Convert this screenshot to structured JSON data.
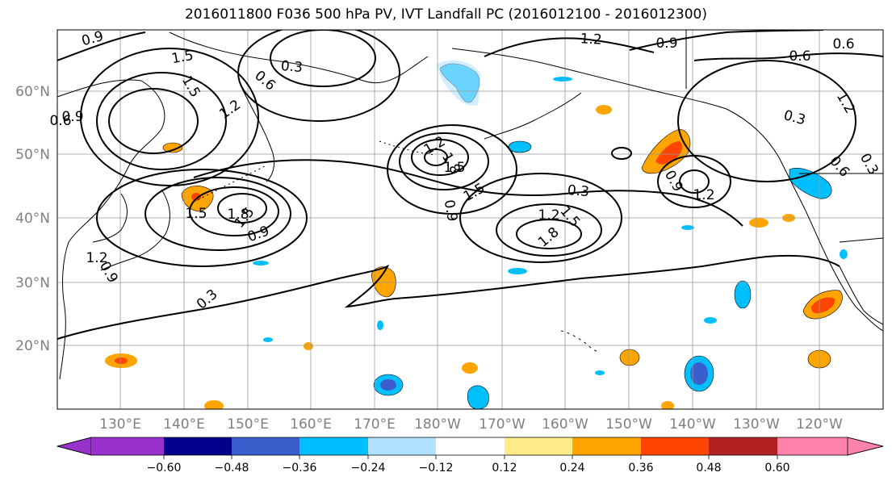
{
  "title": "2016011800 F036 500 hPa PV, IVT Landfall PC (2016012100 - 2016012300)",
  "lat_labels": [
    "60°N",
    "50°N",
    "40°N",
    "30°N",
    "20°N"
  ],
  "lon_labels": [
    "130°E",
    "140°E",
    "150°E",
    "160°E",
    "170°E",
    "180°W",
    "170°W",
    "160°W",
    "150°W",
    "140°W",
    "130°W",
    "120°W"
  ],
  "contour_labels": [
    "0.9",
    "1.5",
    "0.3",
    "0.6",
    "1.2",
    "1.5",
    "1.2",
    "0.9",
    "0.6",
    "0.3",
    "1.2",
    "1.5",
    "1.8",
    "1.5",
    "0.9",
    "1.8",
    "0.9",
    "1.2",
    "1.5",
    "1.5",
    "0.9",
    "1.5",
    "1.8",
    "0.3",
    "1.2",
    "0.9",
    "0.3",
    "1.2",
    "0.6",
    "0.3",
    "0.9",
    "0.6",
    "1.2",
    "0.6"
  ],
  "colorbar": {
    "ticks": [
      "−0.60",
      "−0.48",
      "−0.36",
      "−0.24",
      "−0.12",
      "0.12",
      "0.24",
      "0.36",
      "0.48",
      "0.60"
    ],
    "colors": [
      "#9932cc",
      "#00008b",
      "#3a5fcd",
      "#00bfff",
      "#b0e2ff",
      "#ffffff",
      "#ffec8b",
      "#ffa500",
      "#ff4500",
      "#b22222",
      "#ff82ab",
      "#ff82ab"
    ]
  },
  "fill_colors": {
    "light_blue": "#b0e2ff",
    "sky_blue": "#00bfff",
    "royal_blue": "#3a5fcd",
    "navy": "#00008b",
    "light_yellow": "#ffec8b",
    "orange": "#ffa500",
    "orange_red": "#ff4500",
    "firebrick": "#b22222"
  }
}
